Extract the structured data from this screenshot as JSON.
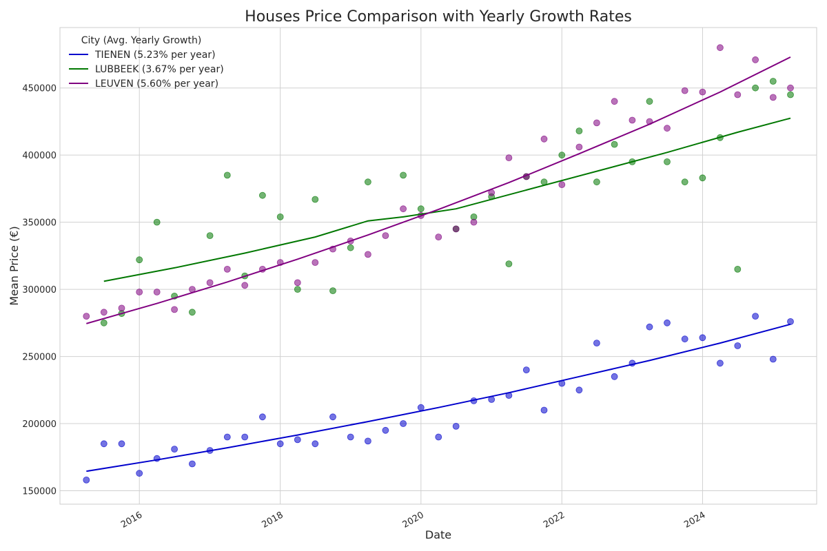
{
  "chart_data": {
    "type": "scatter",
    "title": "Houses Price Comparison with Yearly Growth Rates",
    "xlabel": "Date",
    "ylabel": "Mean Price (€)",
    "xlim": [
      "2014-11-15",
      "2025-08-15"
    ],
    "ylim": [
      140000,
      495000
    ],
    "xticks": [
      {
        "value": "2016-01-01",
        "label": "2016"
      },
      {
        "value": "2018-01-01",
        "label": "2018"
      },
      {
        "value": "2020-01-01",
        "label": "2020"
      },
      {
        "value": "2022-01-01",
        "label": "2022"
      },
      {
        "value": "2024-01-01",
        "label": "2024"
      }
    ],
    "yticks": [
      150000,
      200000,
      250000,
      300000,
      350000,
      400000,
      450000
    ],
    "grid": true,
    "legend": {
      "title": "City (Avg. Yearly Growth)",
      "placement": "top-left"
    },
    "series": [
      {
        "name": "TIENEN (5.23% per year)",
        "color": "#0000cc",
        "points": [
          [
            "2015-04-01",
            158000
          ],
          [
            "2015-07-01",
            185000
          ],
          [
            "2015-10-01",
            185000
          ],
          [
            "2016-01-01",
            163000
          ],
          [
            "2016-04-01",
            174000
          ],
          [
            "2016-07-01",
            181000
          ],
          [
            "2016-10-01",
            170000
          ],
          [
            "2017-01-01",
            180000
          ],
          [
            "2017-04-01",
            190000
          ],
          [
            "2017-07-01",
            190000
          ],
          [
            "2017-10-01",
            205000
          ],
          [
            "2018-01-01",
            185000
          ],
          [
            "2018-04-01",
            188000
          ],
          [
            "2018-07-01",
            185000
          ],
          [
            "2018-10-01",
            205000
          ],
          [
            "2019-01-01",
            190000
          ],
          [
            "2019-04-01",
            187000
          ],
          [
            "2019-07-01",
            195000
          ],
          [
            "2019-10-01",
            200000
          ],
          [
            "2020-01-01",
            212000
          ],
          [
            "2020-04-01",
            190000
          ],
          [
            "2020-07-01",
            198000
          ],
          [
            "2020-10-01",
            217000
          ],
          [
            "2021-01-01",
            218000
          ],
          [
            "2021-04-01",
            221000
          ],
          [
            "2021-07-01",
            240000
          ],
          [
            "2021-10-01",
            210000
          ],
          [
            "2022-01-01",
            230000
          ],
          [
            "2022-04-01",
            225000
          ],
          [
            "2022-07-01",
            260000
          ],
          [
            "2022-10-01",
            235000
          ],
          [
            "2023-01-01",
            245000
          ],
          [
            "2023-04-01",
            272000
          ],
          [
            "2023-07-01",
            275000
          ],
          [
            "2023-10-01",
            263000
          ],
          [
            "2024-01-01",
            264000
          ],
          [
            "2024-04-01",
            245000
          ],
          [
            "2024-07-01",
            258000
          ],
          [
            "2024-10-01",
            280000
          ],
          [
            "2025-01-01",
            248000
          ],
          [
            "2025-04-01",
            276000
          ]
        ],
        "trend": [
          [
            "2015-04-01",
            164500
          ],
          [
            "2016-04-01",
            173000
          ],
          [
            "2017-04-01",
            182000
          ],
          [
            "2018-04-01",
            191500
          ],
          [
            "2019-04-01",
            201500
          ],
          [
            "2020-04-01",
            212000
          ],
          [
            "2021-04-01",
            223000
          ],
          [
            "2022-04-01",
            235000
          ],
          [
            "2023-04-01",
            247000
          ],
          [
            "2024-04-01",
            260000
          ],
          [
            "2025-04-01",
            274000
          ]
        ]
      },
      {
        "name": "LUBBEEK (3.67% per year)",
        "color": "#007700",
        "points": [
          [
            "2015-07-01",
            275000
          ],
          [
            "2015-10-01",
            282000
          ],
          [
            "2016-01-01",
            322000
          ],
          [
            "2016-04-01",
            350000
          ],
          [
            "2016-07-01",
            295000
          ],
          [
            "2016-10-01",
            283000
          ],
          [
            "2017-01-01",
            340000
          ],
          [
            "2017-04-01",
            385000
          ],
          [
            "2017-07-01",
            310000
          ],
          [
            "2017-10-01",
            370000
          ],
          [
            "2018-01-01",
            354000
          ],
          [
            "2018-04-01",
            300000
          ],
          [
            "2018-07-01",
            367000
          ],
          [
            "2018-10-01",
            299000
          ],
          [
            "2019-01-01",
            331000
          ],
          [
            "2019-04-01",
            380000
          ],
          [
            "2019-10-01",
            385000
          ],
          [
            "2020-01-01",
            360000
          ],
          [
            "2020-07-01",
            345000
          ],
          [
            "2020-10-01",
            354000
          ],
          [
            "2021-01-01",
            369000
          ],
          [
            "2021-04-01",
            319000
          ],
          [
            "2021-07-01",
            384000
          ],
          [
            "2021-10-01",
            380000
          ],
          [
            "2022-01-01",
            400000
          ],
          [
            "2022-04-01",
            418000
          ],
          [
            "2022-07-01",
            380000
          ],
          [
            "2022-10-01",
            408000
          ],
          [
            "2023-01-01",
            395000
          ],
          [
            "2023-04-01",
            440000
          ],
          [
            "2023-07-01",
            395000
          ],
          [
            "2023-10-01",
            380000
          ],
          [
            "2024-01-01",
            383000
          ],
          [
            "2024-04-01",
            413000
          ],
          [
            "2024-07-01",
            315000
          ],
          [
            "2024-10-01",
            450000
          ],
          [
            "2025-01-01",
            455000
          ],
          [
            "2025-04-01",
            445000
          ]
        ],
        "trend": [
          [
            "2015-07-01",
            306000
          ],
          [
            "2016-07-01",
            316000
          ],
          [
            "2017-07-01",
            327000
          ],
          [
            "2018-07-01",
            339000
          ],
          [
            "2019-04-01",
            351000
          ],
          [
            "2019-10-01",
            354000
          ],
          [
            "2020-07-01",
            360000
          ],
          [
            "2021-07-01",
            374000
          ],
          [
            "2022-07-01",
            388000
          ],
          [
            "2023-07-01",
            402000
          ],
          [
            "2024-07-01",
            417000
          ],
          [
            "2025-04-01",
            427500
          ]
        ]
      },
      {
        "name": "LEUVEN (5.60% per year)",
        "color": "#800080",
        "points": [
          [
            "2015-04-01",
            280000
          ],
          [
            "2015-07-01",
            283000
          ],
          [
            "2015-10-01",
            286000
          ],
          [
            "2016-01-01",
            298000
          ],
          [
            "2016-04-01",
            298000
          ],
          [
            "2016-07-01",
            285000
          ],
          [
            "2016-10-01",
            300000
          ],
          [
            "2017-01-01",
            305000
          ],
          [
            "2017-04-01",
            315000
          ],
          [
            "2017-07-01",
            303000
          ],
          [
            "2017-10-01",
            315000
          ],
          [
            "2018-01-01",
            320000
          ],
          [
            "2018-04-01",
            305000
          ],
          [
            "2018-07-01",
            320000
          ],
          [
            "2018-10-01",
            330000
          ],
          [
            "2019-01-01",
            336000
          ],
          [
            "2019-04-01",
            326000
          ],
          [
            "2019-07-01",
            340000
          ],
          [
            "2019-10-01",
            360000
          ],
          [
            "2020-01-01",
            355000
          ],
          [
            "2020-04-01",
            339000
          ],
          [
            "2020-07-01",
            345000
          ],
          [
            "2020-10-01",
            350000
          ],
          [
            "2021-01-01",
            372000
          ],
          [
            "2021-04-01",
            398000
          ],
          [
            "2021-07-01",
            384000
          ],
          [
            "2021-10-01",
            412000
          ],
          [
            "2022-01-01",
            378000
          ],
          [
            "2022-04-01",
            406000
          ],
          [
            "2022-07-01",
            424000
          ],
          [
            "2022-10-01",
            440000
          ],
          [
            "2023-01-01",
            426000
          ],
          [
            "2023-04-01",
            425000
          ],
          [
            "2023-07-01",
            420000
          ],
          [
            "2023-10-01",
            448000
          ],
          [
            "2024-01-01",
            447000
          ],
          [
            "2024-04-01",
            480000
          ],
          [
            "2024-07-01",
            445000
          ],
          [
            "2024-10-01",
            471000
          ],
          [
            "2025-01-01",
            443000
          ],
          [
            "2025-04-01",
            450000
          ]
        ],
        "trend": [
          [
            "2015-04-01",
            274500
          ],
          [
            "2016-04-01",
            289500
          ],
          [
            "2017-04-01",
            305500
          ],
          [
            "2018-04-01",
            322500
          ],
          [
            "2019-04-01",
            340500
          ],
          [
            "2020-04-01",
            359500
          ],
          [
            "2021-04-01",
            379500
          ],
          [
            "2022-04-01",
            401000
          ],
          [
            "2023-04-01",
            423000
          ],
          [
            "2024-04-01",
            447000
          ],
          [
            "2025-04-01",
            473000
          ]
        ]
      }
    ]
  }
}
